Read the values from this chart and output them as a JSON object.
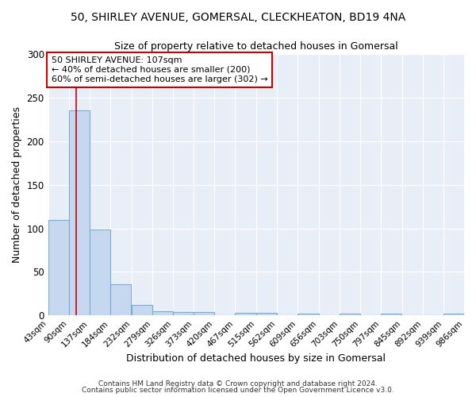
{
  "title_line1": "50, SHIRLEY AVENUE, GOMERSAL, CLECKHEATON, BD19 4NA",
  "title_line2": "Size of property relative to detached houses in Gomersal",
  "xlabel": "Distribution of detached houses by size in Gomersal",
  "ylabel": "Number of detached properties",
  "bin_edges": [
    43,
    90,
    137,
    184,
    232,
    279,
    326,
    373,
    420,
    467,
    515,
    562,
    609,
    656,
    703,
    750,
    797,
    845,
    892,
    939,
    986
  ],
  "bar_heights": [
    110,
    235,
    99,
    36,
    12,
    5,
    4,
    4,
    0,
    3,
    3,
    0,
    2,
    0,
    2,
    0,
    2,
    0,
    0,
    2
  ],
  "bar_color": "#c5d8f0",
  "bar_edge_color": "#7aadd4",
  "property_sqm": 107,
  "red_line_color": "#cc0000",
  "annotation_line1": "50 SHIRLEY AVENUE: 107sqm",
  "annotation_line2": "← 40% of detached houses are smaller (200)",
  "annotation_line3": "60% of semi-detached houses are larger (302) →",
  "annotation_box_edge": "#cc0000",
  "annotation_box_face": "#ffffff",
  "ylim": [
    0,
    300
  ],
  "yticks": [
    0,
    50,
    100,
    150,
    200,
    250,
    300
  ],
  "fig_background": "#ffffff",
  "plot_background": "#e8eef8",
  "grid_color": "#ffffff",
  "footer_line1": "Contains HM Land Registry data © Crown copyright and database right 2024.",
  "footer_line2": "Contains public sector information licensed under the Open Government Licence v3.0."
}
